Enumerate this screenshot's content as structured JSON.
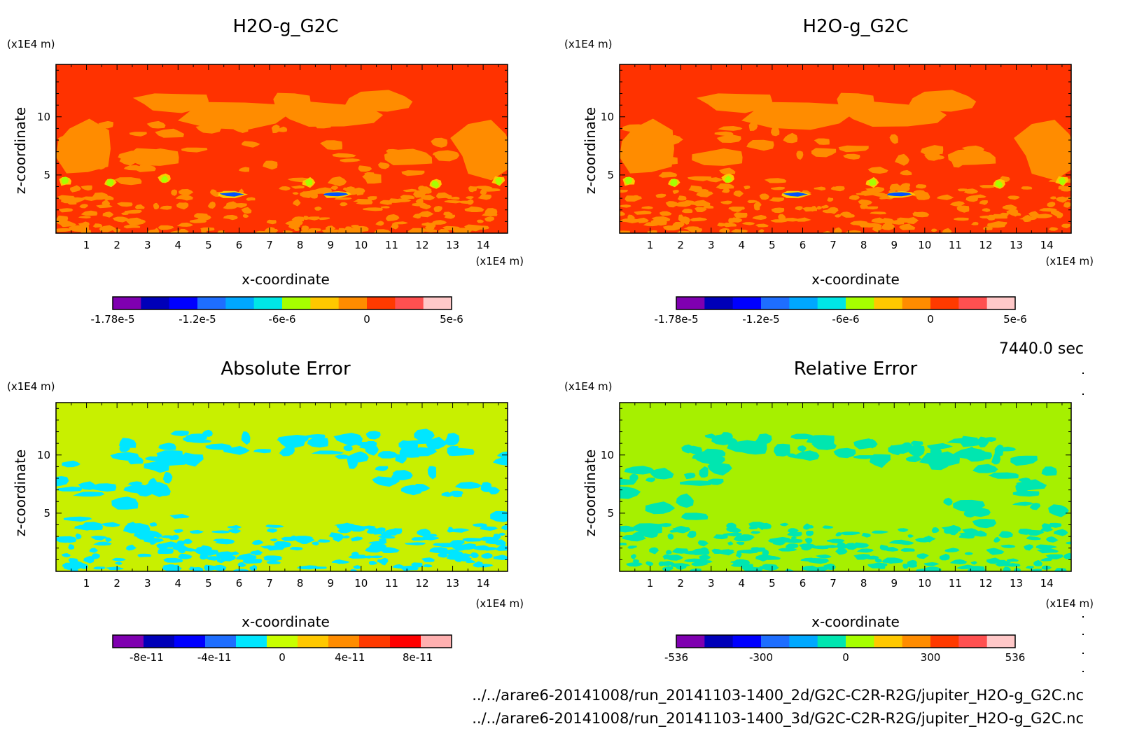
{
  "chart_data": [
    {
      "type": "heatmap",
      "title": "H2O-g_G2C",
      "xlabel": "x-coordinate",
      "ylabel": "z-coordinate",
      "x_unit": "(x1E4 m)",
      "y_unit": "(x1E4 m)",
      "xlim": [
        0,
        14.8
      ],
      "ylim": [
        0,
        14.5
      ],
      "x_ticks": [
        "1",
        "2",
        "3",
        "4",
        "5",
        "6",
        "7",
        "8",
        "9",
        "10",
        "11",
        "12",
        "13",
        "14"
      ],
      "y_ticks": [
        "5",
        "10"
      ],
      "colorbar_labels": [
        "-1.78e-5",
        "-1.2e-5",
        "-6e-6",
        "0",
        "5e-6"
      ],
      "colorbar_colors": [
        "#7f00b0",
        "#0000b8",
        "#0000ff",
        "#1e6eff",
        "#00a8ff",
        "#00e6e6",
        "#a6ff00",
        "#ffc800",
        "#ff8c00",
        "#ff3a00",
        "#ff5050",
        "#ffc8c8"
      ],
      "field": "h2o"
    },
    {
      "type": "heatmap",
      "title": "H2O-g_G2C",
      "xlabel": "x-coordinate",
      "ylabel": "z-coordinate",
      "x_unit": "(x1E4 m)",
      "y_unit": "(x1E4 m)",
      "xlim": [
        0,
        14.8
      ],
      "ylim": [
        0,
        14.5
      ],
      "x_ticks": [
        "1",
        "2",
        "3",
        "4",
        "5",
        "6",
        "7",
        "8",
        "9",
        "10",
        "11",
        "12",
        "13",
        "14"
      ],
      "y_ticks": [
        "5",
        "10"
      ],
      "colorbar_labels": [
        "-1.78e-5",
        "-1.2e-5",
        "-6e-6",
        "0",
        "5e-6"
      ],
      "colorbar_colors": [
        "#7f00b0",
        "#0000b8",
        "#0000ff",
        "#1e6eff",
        "#00a8ff",
        "#00e6e6",
        "#a6ff00",
        "#ffc800",
        "#ff8c00",
        "#ff3a00",
        "#ff5050",
        "#ffc8c8"
      ],
      "field": "h2o"
    },
    {
      "type": "heatmap",
      "title": "Absolute Error",
      "xlabel": "x-coordinate",
      "ylabel": "z-coordinate",
      "x_unit": "(x1E4 m)",
      "y_unit": "(x1E4 m)",
      "xlim": [
        0,
        14.8
      ],
      "ylim": [
        0,
        14.5
      ],
      "x_ticks": [
        "1",
        "2",
        "3",
        "4",
        "5",
        "6",
        "7",
        "8",
        "9",
        "10",
        "11",
        "12",
        "13",
        "14"
      ],
      "y_ticks": [
        "5",
        "10"
      ],
      "colorbar_labels": [
        "-8e-11",
        "-4e-11",
        "0",
        "4e-11",
        "8e-11"
      ],
      "colorbar_colors": [
        "#7f00b0",
        "#0000b8",
        "#0000ff",
        "#1e6eff",
        "#00e6ff",
        "#c8ff00",
        "#ffc800",
        "#ff8c00",
        "#ff3a00",
        "#ff0000",
        "#ffb0b0"
      ],
      "field": "abs"
    },
    {
      "type": "heatmap",
      "title": "Relative Error",
      "xlabel": "x-coordinate",
      "ylabel": "z-coordinate",
      "x_unit": "(x1E4 m)",
      "y_unit": "(x1E4 m)",
      "xlim": [
        0,
        14.8
      ],
      "ylim": [
        0,
        14.5
      ],
      "x_ticks": [
        "1",
        "2",
        "3",
        "4",
        "5",
        "6",
        "7",
        "8",
        "9",
        "10",
        "11",
        "12",
        "13",
        "14"
      ],
      "y_ticks": [
        "5",
        "10"
      ],
      "colorbar_labels": [
        "-536",
        "-300",
        "0",
        "300",
        "536"
      ],
      "colorbar_colors": [
        "#7f00b0",
        "#0000b8",
        "#0000ff",
        "#1e6eff",
        "#00a8ff",
        "#00e6b0",
        "#a6ff00",
        "#ffc800",
        "#ff8c00",
        "#ff3a00",
        "#ff5050",
        "#ffc8c8"
      ],
      "field": "rel"
    }
  ],
  "time_label": "7440.0 sec",
  "file_paths": [
    "../../arare6-20141008/run_20141103-1400_2d/G2C-C2R-R2G/jupiter_H2O-g_G2C.nc",
    "../../arare6-20141008/run_20141103-1400_3d/G2C-C2R-R2G/jupiter_H2O-g_G2C.nc"
  ],
  "field_colors": {
    "h2o_background": "#ff3200",
    "h2o_patch": "#ff8c00",
    "h2o_yellow": "#ffc800",
    "h2o_green": "#a6ff00",
    "h2o_blue": "#0050ff",
    "abs_background": "#c8f000",
    "abs_patch": "#00e6ff",
    "rel_background": "#a6f000",
    "rel_patch": "#00e6b0"
  }
}
